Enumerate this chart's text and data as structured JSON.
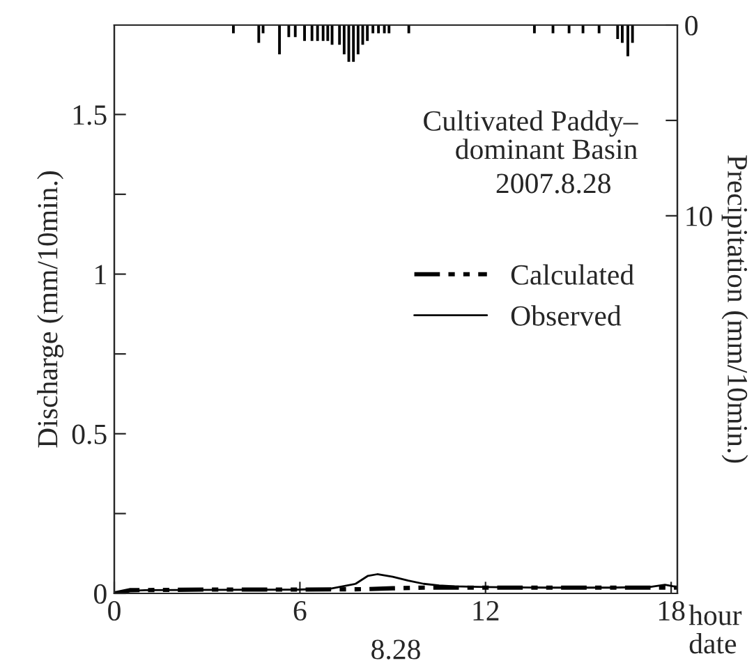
{
  "chart_data": {
    "type": "line",
    "xlabel": "hour",
    "ylabel": "Discharge (mm/10min.)",
    "y2label": "Precipitation (mm/10min.)",
    "annotations": [
      "Cultivated Paddy–\ndominant Basin",
      "2007.8.28",
      "8.28",
      "date"
    ],
    "series": [
      {
        "name": "Calculated",
        "line_style": "dashed",
        "color": "#000000",
        "x": [
          0,
          0.5,
          3,
          6,
          8,
          9,
          10,
          12,
          15,
          18,
          18.2
        ],
        "values": [
          0,
          0.01,
          0.012,
          0.012,
          0.013,
          0.016,
          0.018,
          0.018,
          0.018,
          0.018,
          0.018
        ]
      },
      {
        "name": "Observed",
        "line_style": "solid",
        "color": "#000000",
        "x": [
          0,
          0.5,
          1,
          6,
          7,
          7.8,
          8.2,
          8.5,
          9,
          9.5,
          10,
          10.5,
          11,
          12,
          14,
          16,
          17.3,
          17.8,
          18.2
        ],
        "values": [
          0,
          0.008,
          0.01,
          0.012,
          0.015,
          0.03,
          0.055,
          0.06,
          0.052,
          0.04,
          0.03,
          0.025,
          0.022,
          0.02,
          0.018,
          0.018,
          0.02,
          0.027,
          0.02
        ]
      },
      {
        "type": "bar",
        "axis": "y2",
        "color": "#000000",
        "x": [
          3.85,
          4.67,
          4.81,
          5.34,
          5.64,
          5.85,
          6.15,
          6.39,
          6.57,
          6.75,
          6.9,
          7.04,
          7.28,
          7.43,
          7.58,
          7.73,
          7.88,
          8.03,
          8.18,
          8.36,
          8.54,
          8.73,
          8.88,
          9.52,
          13.58,
          14.18,
          14.7,
          15.15,
          15.67,
          16.27,
          16.42,
          16.6,
          16.75
        ],
        "values": [
          0.4,
          0.9,
          0.4,
          1.5,
          0.6,
          0.6,
          0.8,
          0.8,
          0.8,
          0.8,
          0.8,
          1.0,
          1.0,
          1.5,
          1.9,
          1.9,
          1.5,
          1.0,
          0.8,
          0.4,
          0.4,
          0.4,
          0.4,
          0.4,
          0.4,
          0.4,
          0.4,
          0.4,
          0.4,
          0.7,
          0.9,
          1.6,
          0.9
        ]
      }
    ],
    "xlim": [
      0,
      18.2
    ],
    "xticks": [
      0,
      6,
      12,
      18
    ],
    "ylim": [
      0,
      1.78
    ],
    "yticks": [
      0,
      {
        "value": 0.25,
        "label": null
      },
      0.5,
      {
        "value": 0.75,
        "label": null
      },
      1,
      {
        "value": 1.25,
        "label": null
      },
      1.5
    ],
    "y2lim": [
      29.8,
      0
    ],
    "y2ticks": [
      0,
      {
        "value": 5,
        "label": null
      },
      10
    ],
    "legend": "right",
    "grid": false
  }
}
